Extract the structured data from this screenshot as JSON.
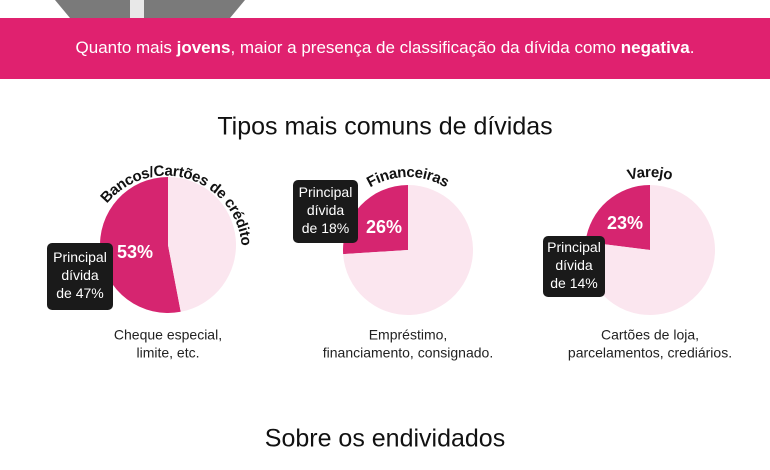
{
  "banner": [
    "Quanto mais ",
    "jovens",
    ", maior a presença de classificação da dívida como ",
    "negativa",
    "."
  ],
  "title": "Tipos mais comuns de dívidas",
  "chart_data": [
    {
      "type": "pie",
      "title": "Bancos/Cartões de crédito",
      "values": [
        53,
        47
      ],
      "value_labels": [
        "53%",
        null
      ],
      "colors": [
        "#d62570",
        "#fbe6ef"
      ],
      "annotation": [
        "Principal",
        "dívida",
        "de 47%"
      ],
      "caption": [
        "Cheque especial,",
        "limite, etc."
      ]
    },
    {
      "type": "pie",
      "title": "Financeiras",
      "values": [
        26,
        74
      ],
      "value_labels": [
        "26%",
        null
      ],
      "colors": [
        "#d62570",
        "#fbe6ef"
      ],
      "annotation": [
        "Principal",
        "dívida",
        "de 18%"
      ],
      "caption": [
        "Empréstimo,",
        "financiamento, consignado."
      ]
    },
    {
      "type": "pie",
      "title": "Varejo",
      "values": [
        23,
        77
      ],
      "value_labels": [
        "23%",
        null
      ],
      "colors": [
        "#d62570",
        "#fbe6ef"
      ],
      "annotation": [
        "Principal",
        "dívida",
        "de 14%"
      ],
      "caption": [
        "Cartões de loja,",
        "parcelamentos, crediários."
      ]
    }
  ],
  "footer_heading": "Sobre os endividados"
}
